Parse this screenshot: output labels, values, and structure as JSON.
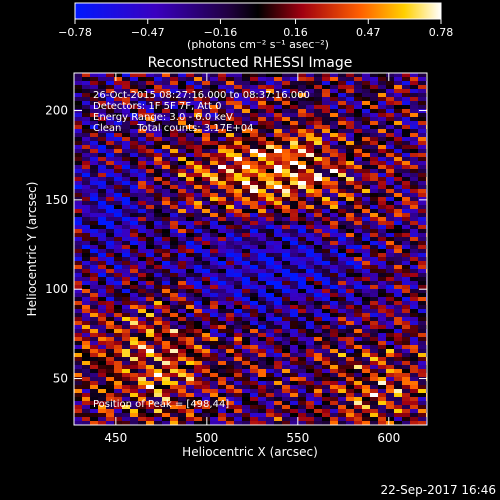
{
  "colorbar": {
    "tick_labels": [
      "−0.78",
      "−0.47",
      "−0.16",
      "0.16",
      "0.47",
      "0.78"
    ],
    "tick_values": [
      -0.78,
      -0.47,
      -0.16,
      0.16,
      0.47,
      0.78
    ],
    "range": [
      -0.78,
      0.78
    ],
    "unit_label": "(photons cm⁻² s⁻¹ asec⁻²)",
    "colors": [
      "#0000ff",
      "#5a00a8",
      "#000000",
      "#c00010",
      "#ff8000",
      "#ffffff"
    ]
  },
  "chart_data": {
    "type": "heatmap",
    "title": "Reconstructed RHESSI Image",
    "xlabel": "Heliocentric X (arcsec)",
    "ylabel": "Heliocentric Y (arcsec)",
    "x_ticks": [
      450,
      500,
      550,
      600
    ],
    "y_ticks": [
      50,
      100,
      150,
      200
    ],
    "xlim": [
      427,
      621
    ],
    "ylim": [
      24,
      221
    ],
    "value_range": [
      -0.78,
      0.78
    ],
    "peak": [
      498,
      44
    ],
    "annotations": [
      "26-Oct-2015 08:27:16.000 to 08:37:16.000",
      "Detectors: 1F 5F 7F, Att 0",
      "Energy Range: 3.0 - 6.0 keV",
      "Clean     Total counts: 3.17E+04"
    ],
    "peak_label": "Position of Peak = [498,44]"
  },
  "footer": {
    "timestamp": "22-Sep-2017 16:46"
  }
}
